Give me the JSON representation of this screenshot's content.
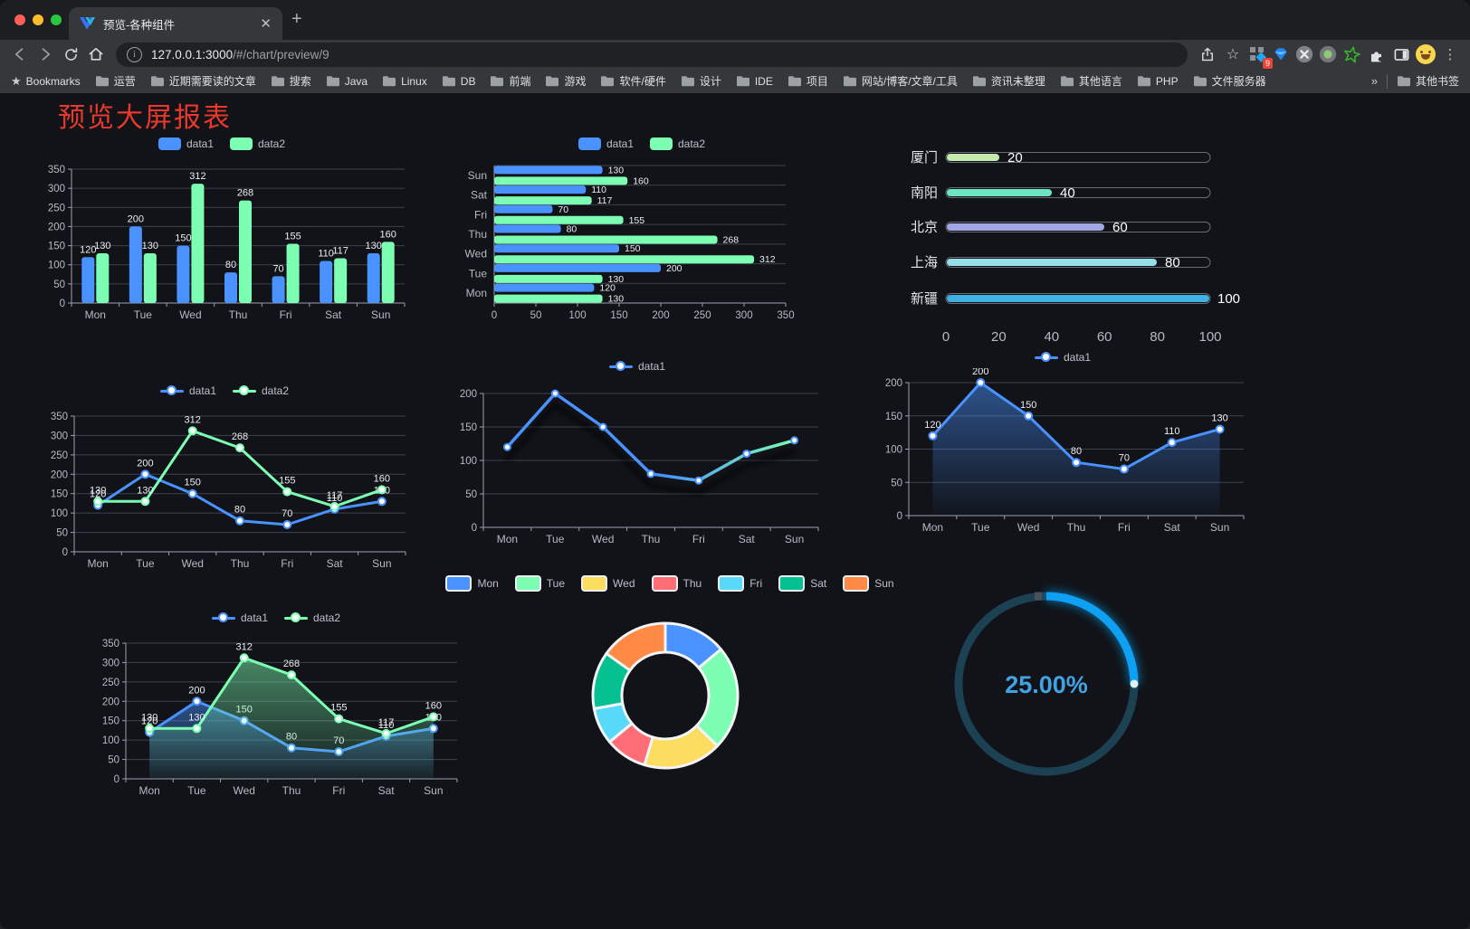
{
  "browser": {
    "tab_title": "预览-各种组件",
    "url_host": "127.0.0.1:3000",
    "url_path": "/#/chart/preview/9",
    "extension_badge": "9",
    "bookmarks_label": "Bookmarks",
    "bookmarks": [
      "运营",
      "近期需要读的文章",
      "搜索",
      "Java",
      "Linux",
      "DB",
      "前端",
      "游戏",
      "软件/硬件",
      "设计",
      "IDE",
      "项目",
      "网站/博客/文章/工具",
      "资讯未整理",
      "其他语言",
      "PHP",
      "文件服务器"
    ],
    "bookmarks_overflow": "»",
    "other_bookmarks": "其他书签"
  },
  "page": {
    "title": "预览大屏报表",
    "title_color": "#e8392c"
  },
  "chart_data": [
    {
      "id": "bar-grouped",
      "type": "bar",
      "categories": [
        "Mon",
        "Tue",
        "Wed",
        "Thu",
        "Fri",
        "Sat",
        "Sun"
      ],
      "series": [
        {
          "name": "data1",
          "color": "#4992ff",
          "values": [
            120,
            200,
            150,
            80,
            70,
            110,
            130
          ]
        },
        {
          "name": "data2",
          "color": "#7cffb2",
          "values": [
            130,
            130,
            312,
            268,
            155,
            117,
            160
          ]
        }
      ],
      "ylim": [
        0,
        350
      ],
      "ytick": 50,
      "value_labels": true,
      "legend_position": "top",
      "grid": true
    },
    {
      "id": "bar-horizontal",
      "type": "bar",
      "orientation": "horizontal",
      "categories": [
        "Mon",
        "Tue",
        "Wed",
        "Thu",
        "Fri",
        "Sat",
        "Sun"
      ],
      "series": [
        {
          "name": "data1",
          "color": "#4992ff",
          "values": [
            120,
            200,
            150,
            80,
            70,
            110,
            130
          ]
        },
        {
          "name": "data2",
          "color": "#7cffb2",
          "values": [
            130,
            130,
            312,
            268,
            155,
            117,
            160
          ]
        }
      ],
      "xlim": [
        0,
        350
      ],
      "xtick": 50,
      "value_labels": true,
      "legend_position": "top",
      "grid": true
    },
    {
      "id": "progress-list",
      "type": "bar",
      "orientation": "horizontal",
      "categories": [
        "厦门",
        "南阳",
        "北京",
        "上海",
        "新疆"
      ],
      "values": [
        20,
        40,
        60,
        80,
        100
      ],
      "colors": [
        "#c4ebad",
        "#6be6c1",
        "#a0a7e6",
        "#96dee8",
        "#3fb1e3"
      ],
      "xlim": [
        0,
        100
      ],
      "xticks": [
        0,
        20,
        40,
        60,
        80,
        100
      ],
      "value_labels": true
    },
    {
      "id": "line-two",
      "type": "line",
      "categories": [
        "Mon",
        "Tue",
        "Wed",
        "Thu",
        "Fri",
        "Sat",
        "Sun"
      ],
      "series": [
        {
          "name": "data1",
          "color": "#4992ff",
          "values": [
            120,
            200,
            150,
            80,
            70,
            110,
            130
          ]
        },
        {
          "name": "data2",
          "color": "#7cffb2",
          "values": [
            130,
            130,
            312,
            268,
            155,
            117,
            160
          ]
        }
      ],
      "ylim": [
        0,
        350
      ],
      "ytick": 50,
      "value_labels": true,
      "legend_position": "top",
      "grid": true
    },
    {
      "id": "line-gradient",
      "type": "line",
      "categories": [
        "Mon",
        "Tue",
        "Wed",
        "Thu",
        "Fri",
        "Sat",
        "Sun"
      ],
      "series": [
        {
          "name": "data1",
          "color_start": "#4992ff",
          "color_end": "#7cffb2",
          "values": [
            120,
            200,
            150,
            80,
            70,
            110,
            130
          ]
        }
      ],
      "ylim": [
        0,
        200
      ],
      "ytick": 50,
      "value_labels": false,
      "shadow": true,
      "legend_position": "top",
      "grid": true
    },
    {
      "id": "area-single",
      "type": "area",
      "categories": [
        "Mon",
        "Tue",
        "Wed",
        "Thu",
        "Fri",
        "Sat",
        "Sun"
      ],
      "series": [
        {
          "name": "data1",
          "color": "#4992ff",
          "values": [
            120,
            200,
            150,
            80,
            70,
            110,
            130
          ]
        }
      ],
      "ylim": [
        0,
        200
      ],
      "ytick": 50,
      "value_labels": true,
      "legend_position": "top",
      "grid": true
    },
    {
      "id": "area-two",
      "type": "area",
      "categories": [
        "Mon",
        "Tue",
        "Wed",
        "Thu",
        "Fri",
        "Sat",
        "Sun"
      ],
      "series": [
        {
          "name": "data1",
          "color": "#4992ff",
          "values": [
            120,
            200,
            150,
            80,
            70,
            110,
            130
          ]
        },
        {
          "name": "data2",
          "color": "#7cffb2",
          "values": [
            130,
            130,
            312,
            268,
            155,
            117,
            160
          ]
        }
      ],
      "ylim": [
        0,
        350
      ],
      "ytick": 50,
      "value_labels": true,
      "legend_position": "top",
      "grid": true
    },
    {
      "id": "donut",
      "type": "pie",
      "categories": [
        "Mon",
        "Tue",
        "Wed",
        "Thu",
        "Fri",
        "Sat",
        "Sun"
      ],
      "values": [
        120,
        200,
        150,
        80,
        70,
        110,
        130
      ],
      "colors": [
        "#4992ff",
        "#7cffb2",
        "#fddd60",
        "#ff6e76",
        "#58d9f9",
        "#05c091",
        "#ff8a45"
      ],
      "inner_radius_ratio": 0.6,
      "border_color": "#f2f4f6",
      "legend_position": "top"
    },
    {
      "id": "gauge",
      "type": "gauge",
      "value": 25,
      "max": 100,
      "label": "25.00%",
      "progress_color": "#0da0f5",
      "track_color": "#1c4152",
      "text_color": "#41a3e3"
    }
  ]
}
